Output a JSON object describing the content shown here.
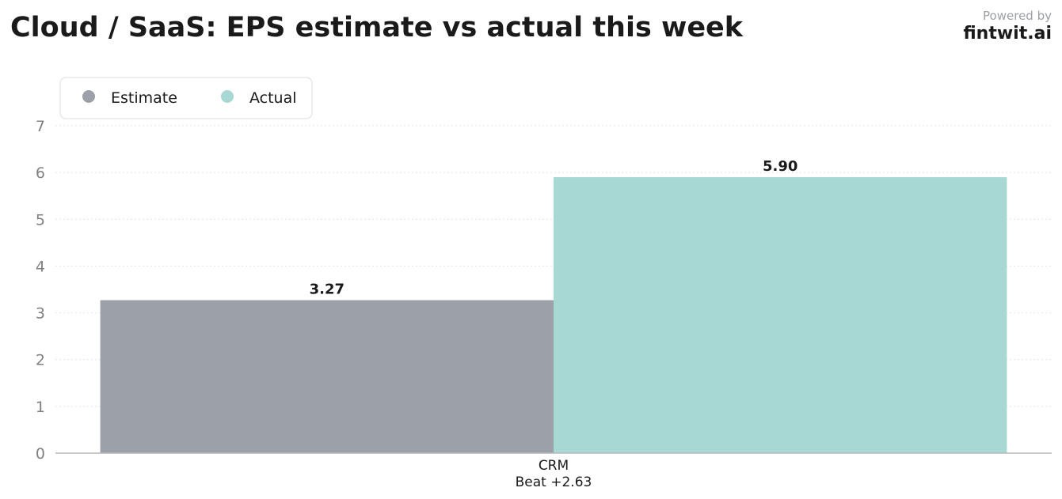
{
  "header": {
    "title": "Cloud / SaaS: EPS estimate vs actual this week",
    "powered_by": "Powered by",
    "brand": "fintwit.ai"
  },
  "chart_data": {
    "type": "bar",
    "title": "Cloud / SaaS: EPS estimate vs actual this week",
    "xlabel": "",
    "ylabel": "",
    "categories": [
      "CRM"
    ],
    "category_sublabels": [
      "Beat +2.63"
    ],
    "series": [
      {
        "name": "Estimate",
        "values": [
          3.27
        ],
        "labels": [
          "3.27"
        ],
        "color": "#9ca0a8"
      },
      {
        "name": "Actual",
        "values": [
          5.9
        ],
        "labels": [
          "5.90"
        ],
        "color": "#a8d8d4"
      }
    ],
    "ylim": [
      0,
      7
    ],
    "yticks": [
      0,
      1,
      2,
      3,
      4,
      5,
      6,
      7
    ],
    "grid": true,
    "legend_position": "top-left"
  },
  "colors": {
    "grid": "#e4e4e4",
    "axis": "#b8b8b8",
    "tick_label": "#808080",
    "data_label": "#1a1a1a"
  }
}
